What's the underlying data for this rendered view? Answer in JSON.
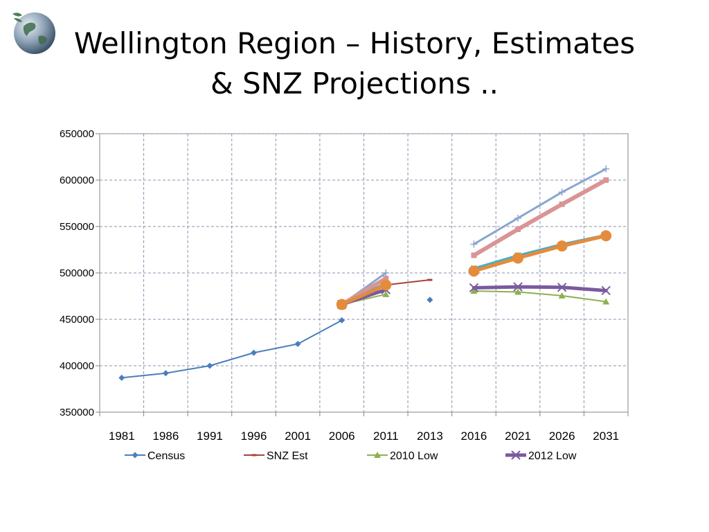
{
  "slide": {
    "title": "Wellington Region – History, Estimates\n& SNZ Projections .."
  },
  "icons": {
    "logo": "globe-icon"
  },
  "chart_data": {
    "type": "line",
    "title": "Wellington Region – History, Estimates & SNZ Projections ..",
    "xlabel": "",
    "ylabel": "",
    "categories": [
      "1981",
      "1986",
      "1991",
      "1996",
      "2001",
      "2006",
      "2011",
      "2013",
      "2016",
      "2021",
      "2026",
      "2031"
    ],
    "ylim": [
      350000,
      650000
    ],
    "yticks": [
      350000,
      400000,
      450000,
      500000,
      550000,
      600000,
      650000
    ],
    "grid": true,
    "legend_position": "bottom",
    "series": [
      {
        "name": "Census",
        "color": "#4a7ebb",
        "marker": "diamond",
        "width": 2,
        "values": [
          387000,
          392000,
          400000,
          414000,
          423500,
          449000,
          null,
          471000,
          null,
          null,
          null,
          null
        ]
      },
      {
        "name": "SNZ Est",
        "color": "#a8413d",
        "marker": "dash",
        "width": 2,
        "values": [
          null,
          null,
          null,
          null,
          null,
          466000,
          487000,
          492500,
          null,
          null,
          null,
          null
        ]
      },
      {
        "name": "2010 Low",
        "color": "#8cb04e",
        "marker": "triangle",
        "width": 2,
        "values": [
          null,
          null,
          null,
          null,
          null,
          466000,
          477000,
          null,
          480500,
          479500,
          475500,
          469000
        ]
      },
      {
        "name": "2012 Low",
        "color": "#7a5a9e",
        "marker": "x",
        "width": 5,
        "values": [
          null,
          null,
          null,
          null,
          null,
          466000,
          482000,
          null,
          484000,
          485000,
          484500,
          481000
        ]
      },
      {
        "name": "",
        "color": "#8aa6cf",
        "marker": "plus",
        "width": 3,
        "values": [
          null,
          null,
          null,
          null,
          null,
          466000,
          500000,
          null,
          531000,
          559000,
          587000,
          612000
        ]
      },
      {
        "name": "",
        "color": "#d99594",
        "marker": "square",
        "width": 6,
        "values": [
          null,
          null,
          null,
          null,
          null,
          466000,
          494000,
          null,
          519000,
          547000,
          574000,
          600000
        ]
      },
      {
        "name": "",
        "color": "#4aacc6",
        "marker": "cross",
        "width": 3,
        "values": [
          null,
          null,
          null,
          null,
          null,
          466000,
          489000,
          null,
          505000,
          519000,
          531000,
          541000
        ]
      },
      {
        "name": "",
        "color": "#e48c3c",
        "marker": "circle",
        "width": 5,
        "values": [
          null,
          null,
          null,
          null,
          null,
          466000,
          487000,
          null,
          502000,
          516000,
          529000,
          540000
        ]
      }
    ]
  }
}
